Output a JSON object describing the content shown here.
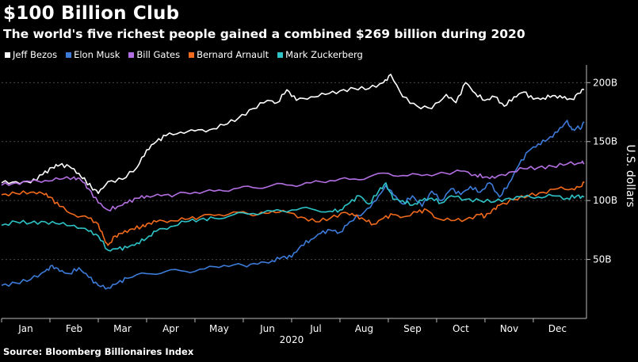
{
  "chart_data": {
    "type": "line",
    "title": "$100 Billion Club",
    "subtitle": "The world's five richest people gained a combined $269 billion during 2020",
    "xlabel": "2020",
    "ylabel": "U.S. dollars",
    "ylim": [
      0,
      215
    ],
    "grid": true,
    "legend_position": "top-left",
    "categories": [
      "Jan",
      "Feb",
      "Mar",
      "Apr",
      "May",
      "Jun",
      "Jul",
      "Aug",
      "Sep",
      "Oct",
      "Nov",
      "Dec"
    ],
    "yticks": [
      50,
      100,
      150,
      200
    ],
    "ytick_labels": [
      "50B",
      "100B",
      "150B",
      "200B"
    ],
    "x_range": [
      0,
      12.1
    ],
    "series": [
      {
        "name": "Jeff Bezos",
        "color": "#ffffff",
        "x": [
          0,
          0.3,
          0.6,
          0.85,
          1.05,
          1.2,
          1.4,
          1.6,
          1.75,
          1.85,
          2.0,
          2.2,
          2.5,
          2.8,
          3.0,
          3.2,
          3.4,
          3.7,
          4.0,
          4.3,
          4.6,
          4.9,
          5.2,
          5.5,
          5.7,
          5.9,
          6.1,
          6.4,
          6.7,
          7.0,
          7.3,
          7.6,
          7.9,
          8.05,
          8.3,
          8.6,
          8.9,
          9.2,
          9.4,
          9.6,
          9.8,
          10.0,
          10.2,
          10.4,
          10.6,
          10.8,
          11.0,
          11.2,
          11.4,
          11.6,
          11.8,
          11.95,
          12.05
        ],
        "values": [
          115,
          116,
          115,
          122,
          128,
          130,
          129,
          123,
          116,
          112,
          106,
          116,
          118,
          128,
          143,
          150,
          155,
          158,
          159,
          160,
          164,
          170,
          178,
          185,
          183,
          194,
          185,
          188,
          190,
          193,
          195,
          195,
          200,
          207,
          188,
          180,
          178,
          190,
          183,
          200,
          191,
          185,
          188,
          180,
          188,
          192,
          186,
          187,
          189,
          187,
          186,
          191,
          194
        ]
      },
      {
        "name": "Elon Musk",
        "color": "#3d7bd9",
        "x": [
          0,
          0.3,
          0.6,
          0.9,
          1.05,
          1.2,
          1.4,
          1.6,
          1.8,
          2.0,
          2.2,
          2.4,
          2.6,
          3.0,
          3.4,
          3.8,
          4.2,
          4.6,
          5.0,
          5.3,
          5.6,
          5.8,
          6.0,
          6.2,
          6.4,
          6.6,
          6.8,
          7.0,
          7.2,
          7.5,
          7.75,
          7.95,
          8.1,
          8.3,
          8.5,
          8.7,
          8.9,
          9.1,
          9.3,
          9.5,
          9.7,
          9.9,
          10.1,
          10.3,
          10.5,
          10.7,
          10.9,
          11.1,
          11.3,
          11.5,
          11.7,
          11.8,
          11.9,
          12.0,
          12.05
        ],
        "values": [
          28,
          30,
          33,
          40,
          45,
          40,
          38,
          43,
          35,
          28,
          26,
          30,
          34,
          38,
          40,
          40,
          42,
          45,
          45,
          46,
          49,
          52,
          52,
          62,
          67,
          72,
          75,
          73,
          82,
          90,
          100,
          113,
          105,
          97,
          104,
          95,
          108,
          100,
          110,
          105,
          112,
          107,
          115,
          103,
          115,
          130,
          142,
          148,
          152,
          158,
          168,
          160,
          162,
          162,
          166
        ]
      },
      {
        "name": "Bill Gates",
        "color": "#b36fe2",
        "x": [
          0,
          0.3,
          0.6,
          0.9,
          1.2,
          1.5,
          1.65,
          1.8,
          2.0,
          2.2,
          2.4,
          2.6,
          2.8,
          3.0,
          3.3,
          3.6,
          4.0,
          4.4,
          4.8,
          5.2,
          5.6,
          6.0,
          6.4,
          6.8,
          7.2,
          7.6,
          8.0,
          8.4,
          8.8,
          9.2,
          9.5,
          9.8,
          10.0,
          10.2,
          10.5,
          10.8,
          11.1,
          11.4,
          11.7,
          12.0,
          12.05
        ],
        "values": [
          113,
          115,
          116,
          117,
          118,
          120,
          117,
          110,
          98,
          92,
          95,
          98,
          102,
          104,
          104,
          105,
          107,
          108,
          110,
          111,
          113,
          113,
          115,
          117,
          118,
          120,
          123,
          121,
          122,
          123,
          125,
          122,
          120,
          119,
          124,
          127,
          128,
          129,
          131,
          132,
          131
        ]
      },
      {
        "name": "Bernard Arnault",
        "color": "#f26a1b",
        "x": [
          0,
          0.3,
          0.6,
          0.85,
          1.0,
          1.2,
          1.5,
          1.8,
          2.0,
          2.1,
          2.2,
          2.35,
          2.5,
          2.7,
          2.9,
          3.0,
          3.2,
          3.5,
          3.8,
          4.1,
          4.5,
          4.9,
          5.3,
          5.6,
          5.9,
          6.2,
          6.5,
          6.8,
          7.1,
          7.3,
          7.5,
          7.7,
          7.9,
          8.1,
          8.3,
          8.6,
          8.8,
          9.0,
          9.3,
          9.6,
          9.9,
          10.0,
          10.15,
          10.3,
          10.6,
          10.9,
          11.2,
          11.5,
          11.8,
          12.0,
          12.05
        ],
        "values": [
          105,
          106,
          107,
          106,
          103,
          95,
          88,
          85,
          80,
          70,
          62,
          70,
          72,
          76,
          78,
          80,
          82,
          83,
          84,
          86,
          88,
          90,
          88,
          91,
          90,
          86,
          82,
          85,
          90,
          87,
          84,
          80,
          85,
          88,
          86,
          90,
          92,
          85,
          83,
          84,
          88,
          86,
          92,
          96,
          101,
          104,
          107,
          110,
          110,
          112,
          115
        ]
      },
      {
        "name": "Mark Zuckerberg",
        "color": "#2ec4c8",
        "x": [
          0,
          0.3,
          0.6,
          0.9,
          1.2,
          1.5,
          1.8,
          2.0,
          2.2,
          2.4,
          2.6,
          2.8,
          3.0,
          3.2,
          3.5,
          3.8,
          4.1,
          4.4,
          4.8,
          5.2,
          5.6,
          6.0,
          6.4,
          6.8,
          7.0,
          7.2,
          7.4,
          7.6,
          7.8,
          7.95,
          8.1,
          8.3,
          8.5,
          8.7,
          8.9,
          9.1,
          9.3,
          9.6,
          9.9,
          10.2,
          10.5,
          10.8,
          11.1,
          11.4,
          11.7,
          11.9,
          12.05
        ],
        "values": [
          79,
          82,
          81,
          82,
          80,
          79,
          74,
          70,
          58,
          59,
          60,
          64,
          68,
          74,
          78,
          82,
          84,
          85,
          88,
          89,
          91,
          92,
          93,
          91,
          92,
          98,
          104,
          97,
          108,
          115,
          101,
          100,
          96,
          100,
          102,
          98,
          104,
          101,
          100,
          99,
          102,
          103,
          103,
          104,
          102,
          104,
          103
        ]
      }
    ]
  },
  "source": "Source: Bloomberg Billionaires Index"
}
